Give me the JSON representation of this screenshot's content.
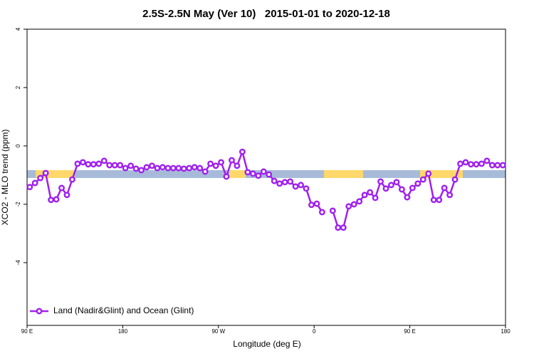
{
  "chart_data": {
    "type": "line",
    "title": "2.5S-2.5N May (Ver 10)   2015-01-01 to 2020-12-18",
    "x_label": "Longitude (deg E)",
    "y_label": "XCO2 - MLO trend (ppm)",
    "x": [
      92.5,
      97.5,
      102.5,
      107.5,
      112.5,
      117.5,
      122.5,
      127.5,
      132.5,
      137.5,
      142.5,
      147.5,
      152.5,
      157.5,
      162.5,
      167.5,
      172.5,
      177.5,
      182.5,
      187.5,
      192.5,
      197.5,
      202.5,
      207.5,
      212.5,
      217.5,
      222.5,
      227.5,
      232.5,
      237.5,
      242.5,
      247.5,
      252.5,
      257.5,
      262.5,
      267.5,
      272.5,
      277.5,
      282.5,
      287.5,
      292.5,
      297.5,
      302.5,
      307.5,
      312.5,
      317.5,
      322.5,
      327.5,
      332.5,
      337.5,
      342.5,
      347.5,
      352.5,
      357.5,
      362.5,
      367.5,
      372.5,
      377.5,
      382.5,
      387.5,
      392.5,
      397.5,
      402.5,
      407.5,
      412.5,
      417.5,
      422.5,
      427.5,
      432.5,
      437.5,
      442.5,
      447.5,
      452.5,
      457.5,
      462.5,
      467.5,
      472.5,
      477.5,
      482.5,
      487.5,
      492.5,
      497.5,
      502.5,
      507.5,
      512.5,
      517.5,
      522.5,
      527.5,
      532.5,
      537.5
    ],
    "series": [
      {
        "name": "Land (Nadir&Glint) and Ocean (Glint)",
        "color": "#a020f0",
        "values": [
          -1.41,
          -1.27,
          -1.1,
          -0.93,
          -1.85,
          -1.83,
          -1.44,
          -1.68,
          -1.15,
          -0.61,
          -0.56,
          -0.63,
          -0.63,
          -0.61,
          -0.51,
          -0.66,
          -0.66,
          -0.66,
          -0.76,
          -0.68,
          -0.78,
          -0.83,
          -0.73,
          -0.68,
          -0.76,
          -0.73,
          -0.76,
          -0.76,
          -0.76,
          -0.78,
          -0.76,
          -0.73,
          -0.76,
          -0.88,
          -0.61,
          -0.68,
          -0.56,
          -1.05,
          -0.49,
          -0.68,
          -0.2,
          -0.9,
          -0.95,
          -1.02,
          -0.88,
          -0.98,
          -1.2,
          -1.29,
          -1.24,
          -1.22,
          -1.39,
          -1.34,
          -1.46,
          -2.02,
          -1.98,
          -2.27,
          null,
          -2.22,
          -2.8,
          -2.8,
          -2.07,
          -2.0,
          -1.9,
          -1.68,
          -1.59,
          -1.78,
          -1.22,
          -1.46,
          -1.34,
          -1.24,
          -1.49,
          -1.76,
          -1.44,
          -1.29,
          -1.15,
          -0.95,
          -1.85,
          -1.85,
          -1.44,
          -1.68,
          -1.15,
          -0.61,
          -0.56,
          -0.63,
          -0.63,
          -0.61,
          -0.51,
          -0.66,
          -0.66,
          -0.66
        ]
      }
    ],
    "xlim": [
      90,
      540
    ],
    "xticks": [
      {
        "value": 90,
        "label": "90 E"
      },
      180,
      {
        "value": 270,
        "label": "90 W"
      },
      {
        "value": 360,
        "label": "0"
      },
      {
        "value": 450,
        "label": "90 E"
      },
      {
        "value": 540,
        "label": "180"
      }
    ],
    "ylim": [
      -6.15,
      4
    ],
    "yticks": [
      4,
      2,
      0,
      -2,
      -4
    ],
    "grid": false,
    "legend": "bottom-left"
  }
}
